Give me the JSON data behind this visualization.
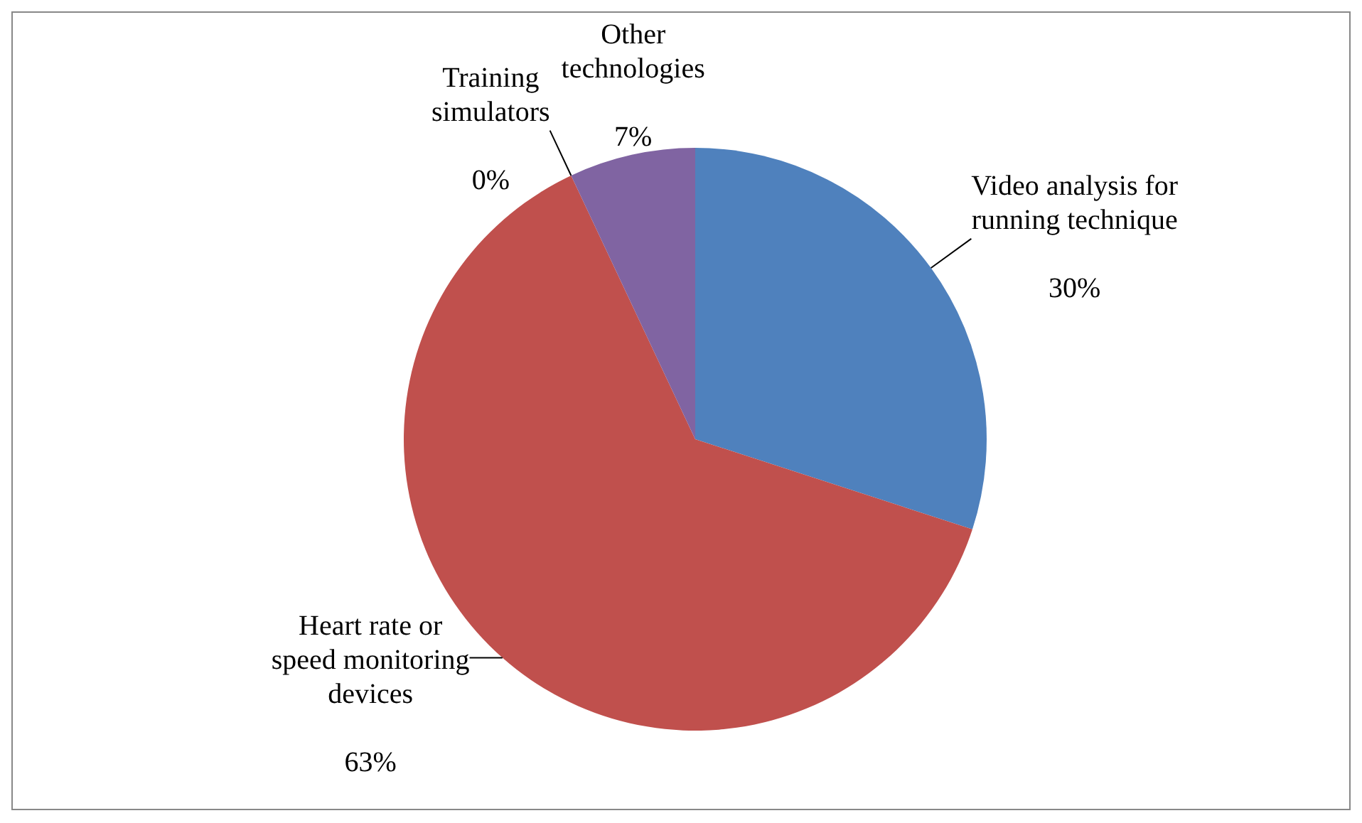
{
  "chart_data": {
    "type": "pie",
    "categories": [
      "Video analysis for running technique",
      "Heart rate or speed monitoring devices",
      "Training simulators",
      "Other technologies"
    ],
    "values": [
      30,
      63,
      0,
      7
    ],
    "colors": [
      "#4f81bd",
      "#c0504d",
      "#9bbb59",
      "#8064a2"
    ],
    "value_labels": [
      "30%",
      "63%",
      "0%",
      "7%"
    ],
    "legend": false
  }
}
